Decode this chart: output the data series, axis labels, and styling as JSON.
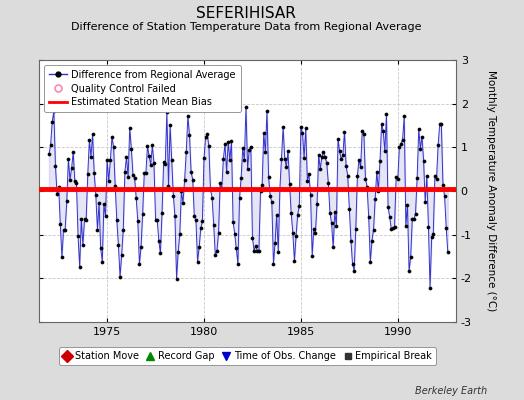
{
  "title": "SEFERIHISAR",
  "subtitle": "Difference of Station Temperature Data from Regional Average",
  "ylabel": "Monthly Temperature Anomaly Difference (°C)",
  "xlabel_ticks": [
    1975,
    1980,
    1985,
    1990
  ],
  "ylim": [
    -3,
    3
  ],
  "xlim": [
    1971.5,
    1993.0
  ],
  "yticks": [
    -3,
    -2,
    -1,
    0,
    1,
    2,
    3
  ],
  "mean_bias": 0.05,
  "line_color": "#3333CC",
  "line_fill_color": "#9999DD",
  "marker_color": "#000000",
  "bias_color": "#FF0000",
  "background_color": "#DCDCDC",
  "plot_bg_color": "#FFFFFF",
  "title_fontsize": 11,
  "subtitle_fontsize": 8,
  "ylabel_fontsize": 7.5,
  "tick_fontsize": 8,
  "legend_fontsize": 7,
  "watermark": "Berkeley Earth",
  "seed": 42,
  "start_year": 1972.0,
  "end_year": 1992.6,
  "seasonal_amp": 1.3,
  "seasonal_phase": 0.5,
  "noise_std": 0.45
}
